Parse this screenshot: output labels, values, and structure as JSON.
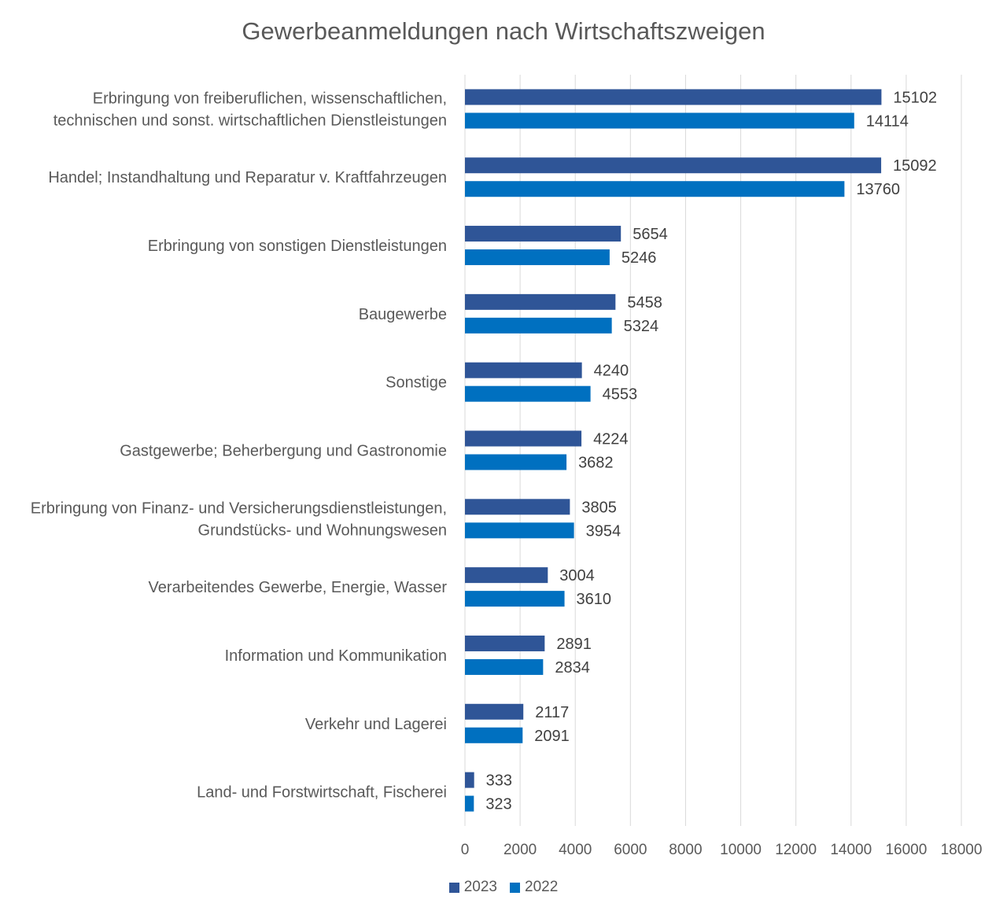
{
  "chart_data": {
    "type": "bar",
    "orientation": "horizontal",
    "title": "Gewerbeanmeldungen nach Wirtschaftszweigen",
    "categories": [
      [
        "Erbringung von freiberuflichen, wissenschaftlichen,",
        "technischen und sonst. wirtschaftlichen Dienstleistungen"
      ],
      [
        "Handel; Instandhaltung und Reparatur v. Kraftfahrzeugen"
      ],
      [
        "Erbringung von sonstigen Dienstleistungen"
      ],
      [
        "Baugewerbe"
      ],
      [
        "Sonstige"
      ],
      [
        "Gastgewerbe; Beherbergung und Gastronomie"
      ],
      [
        "Erbringung von Finanz- und Versicherungsdienstleistungen,",
        "Grundstücks- und Wohnungswesen"
      ],
      [
        "Verarbeitendes Gewerbe, Energie, Wasser"
      ],
      [
        "Information und Kommunikation"
      ],
      [
        "Verkehr und Lagerei"
      ],
      [
        "Land- und Forstwirtschaft, Fischerei"
      ]
    ],
    "series": [
      {
        "name": "2023",
        "color": "#2F5597",
        "values": [
          15102,
          15092,
          5654,
          5458,
          4240,
          4224,
          3805,
          3004,
          2891,
          2117,
          333
        ]
      },
      {
        "name": "2022",
        "color": "#0070C0",
        "values": [
          14114,
          13760,
          5246,
          5324,
          4553,
          3682,
          3954,
          3610,
          2834,
          2091,
          323
        ]
      }
    ],
    "xlim": [
      0,
      18000
    ],
    "xticks": [
      0,
      2000,
      4000,
      6000,
      8000,
      10000,
      12000,
      14000,
      16000,
      18000
    ],
    "data_labels": true,
    "grid": "vertical",
    "legend_position": "bottom"
  }
}
